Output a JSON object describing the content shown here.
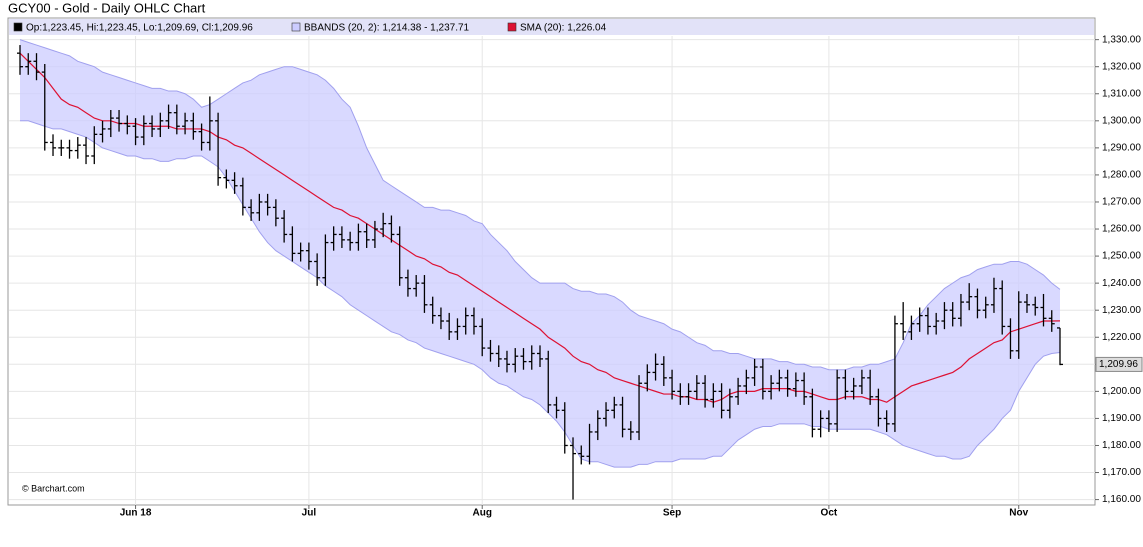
{
  "chart_data": {
    "type": "ohlc",
    "title": "GCY00 - Gold - Daily OHLC Chart",
    "source": "© Barchart.com",
    "categories": [
      null,
      null,
      null,
      null,
      null,
      null,
      null,
      null,
      null,
      null,
      null,
      null,
      null,
      null,
      "Jun 18",
      null,
      null,
      null,
      null,
      null,
      null,
      null,
      null,
      null,
      null,
      null,
      null,
      null,
      null,
      null,
      null,
      null,
      null,
      null,
      null,
      "Jul",
      null,
      null,
      null,
      null,
      null,
      null,
      null,
      null,
      null,
      null,
      null,
      null,
      null,
      null,
      null,
      null,
      null,
      null,
      null,
      null,
      "Aug",
      null,
      null,
      null,
      null,
      null,
      null,
      null,
      null,
      null,
      null,
      null,
      null,
      null,
      null,
      null,
      null,
      null,
      null,
      null,
      null,
      null,
      null,
      "Sep",
      null,
      null,
      null,
      null,
      null,
      null,
      null,
      null,
      null,
      null,
      null,
      null,
      null,
      null,
      null,
      null,
      null,
      null,
      "Oct",
      null,
      null,
      null,
      null,
      null,
      null,
      null,
      null,
      null,
      null,
      null,
      null,
      null,
      null,
      null,
      null,
      null,
      null,
      null,
      null,
      null,
      null,
      "Nov",
      null,
      null,
      null,
      null,
      null
    ],
    "ylim": [
      1158,
      1338
    ],
    "yticks": [
      {
        "value": 1160,
        "label": "1,160.00"
      },
      {
        "value": 1170,
        "label": "1,170.00"
      },
      {
        "value": 1180,
        "label": "1,180.00"
      },
      {
        "value": 1190,
        "label": "1,190.00"
      },
      {
        "value": 1200,
        "label": "1,200.00"
      },
      {
        "value": 1210,
        "label": "1,210.00"
      },
      {
        "value": 1220,
        "label": "1,220.00"
      },
      {
        "value": 1230,
        "label": "1,230.00"
      },
      {
        "value": 1240,
        "label": "1,240.00"
      },
      {
        "value": 1250,
        "label": "1,250.00"
      },
      {
        "value": 1260,
        "label": "1,260.00"
      },
      {
        "value": 1270,
        "label": "1,270.00"
      },
      {
        "value": 1280,
        "label": "1,280.00"
      },
      {
        "value": 1290,
        "label": "1,290.00"
      },
      {
        "value": 1300,
        "label": "1,300.00"
      },
      {
        "value": 1310,
        "label": "1,310.00"
      },
      {
        "value": 1320,
        "label": "1,320.00"
      },
      {
        "value": 1330,
        "label": "1,330.00"
      }
    ],
    "grid": true,
    "last_value_label": "1,209.96",
    "series": [
      {
        "name": "Op:1,223.45, Hi:1,223.45, Lo:1,209.69, Cl:1,209.96",
        "color": "#000000",
        "open": [
          1325,
          1320,
          1322,
          1318,
          1292,
          1290,
          1290,
          1289,
          1291,
          1287,
          1295,
          1297,
          1301,
          1299,
          1298,
          1294,
          1299,
          1297,
          1300,
          1303,
          1298,
          1300,
          1296,
          1292,
          1300,
          1279,
          1278,
          1276,
          1268,
          1266,
          1270,
          1268,
          1264,
          1258,
          1251,
          1252,
          1248,
          1242,
          1255,
          1258,
          1256,
          1255,
          1259,
          1256,
          1260,
          1262,
          1258,
          1242,
          1238,
          1240,
          1232,
          1228,
          1226,
          1222,
          1224,
          1228,
          1224,
          1216,
          1214,
          1212,
          1210,
          1213,
          1211,
          1214,
          1212,
          1195,
          1193,
          1180,
          1177,
          1176,
          1185,
          1190,
          1193,
          1195,
          1186,
          1185,
          1203,
          1207,
          1210,
          1205,
          1200,
          1198,
          1200,
          1203,
          1197,
          1200,
          1193,
          1198,
          1202,
          1205,
          1209,
          1200,
          1203,
          1205,
          1201,
          1204,
          1198,
          1186,
          1190,
          1188,
          1205,
          1200,
          1202,
          1205,
          1198,
          1190,
          1188,
          1225,
          1222,
          1225,
          1228,
          1224,
          1226,
          1230,
          1227,
          1233,
          1235,
          1230,
          1232,
          1238,
          1224,
          1215,
          1233,
          1232,
          1231,
          1227,
          1223.45
        ],
        "high": [
          1328,
          1325,
          1325,
          1321,
          1295,
          1293,
          1293,
          1294,
          1294,
          1298,
          1300,
          1304,
          1304,
          1302,
          1301,
          1302,
          1302,
          1303,
          1306,
          1306,
          1303,
          1303,
          1299,
          1309,
          1303,
          1282,
          1281,
          1279,
          1271,
          1273,
          1273,
          1271,
          1267,
          1261,
          1255,
          1255,
          1251,
          1258,
          1261,
          1261,
          1259,
          1262,
          1262,
          1263,
          1266,
          1265,
          1261,
          1245,
          1243,
          1243,
          1235,
          1231,
          1229,
          1227,
          1231,
          1231,
          1227,
          1219,
          1217,
          1215,
          1216,
          1216,
          1217,
          1217,
          1215,
          1198,
          1196,
          1183,
          1180,
          1188,
          1193,
          1196,
          1198,
          1198,
          1189,
          1206,
          1210,
          1214,
          1213,
          1208,
          1203,
          1203,
          1206,
          1206,
          1203,
          1203,
          1201,
          1205,
          1208,
          1212,
          1212,
          1206,
          1208,
          1208,
          1207,
          1207,
          1201,
          1193,
          1193,
          1208,
          1208,
          1205,
          1208,
          1208,
          1201,
          1193,
          1228,
          1233,
          1228,
          1231,
          1231,
          1229,
          1233,
          1233,
          1236,
          1240,
          1238,
          1235,
          1242,
          1241,
          1227,
          1237,
          1236,
          1235,
          1236,
          1230,
          1223.45
        ],
        "low": [
          1317,
          1317,
          1315,
          1289,
          1287,
          1287,
          1286,
          1286,
          1284,
          1284,
          1292,
          1294,
          1296,
          1295,
          1291,
          1291,
          1294,
          1294,
          1297,
          1295,
          1295,
          1293,
          1289,
          1289,
          1276,
          1275,
          1273,
          1265,
          1263,
          1263,
          1265,
          1261,
          1255,
          1248,
          1248,
          1245,
          1239,
          1239,
          1252,
          1253,
          1252,
          1252,
          1253,
          1253,
          1257,
          1255,
          1239,
          1235,
          1235,
          1229,
          1225,
          1223,
          1219,
          1219,
          1221,
          1221,
          1213,
          1211,
          1209,
          1207,
          1207,
          1208,
          1208,
          1209,
          1192,
          1190,
          1177,
          1160,
          1173,
          1173,
          1182,
          1187,
          1190,
          1183,
          1182,
          1182,
          1200,
          1204,
          1202,
          1197,
          1195,
          1195,
          1197,
          1194,
          1194,
          1190,
          1190,
          1195,
          1199,
          1202,
          1197,
          1197,
          1200,
          1198,
          1198,
          1195,
          1183,
          1183,
          1185,
          1185,
          1197,
          1197,
          1199,
          1195,
          1187,
          1185,
          1185,
          1219,
          1219,
          1222,
          1221,
          1221,
          1223,
          1224,
          1224,
          1230,
          1227,
          1227,
          1229,
          1221,
          1212,
          1212,
          1229,
          1228,
          1224,
          1222,
          1209.69
        ],
        "close": [
          1320,
          1322,
          1318,
          1292,
          1290,
          1290,
          1289,
          1291,
          1287,
          1295,
          1297,
          1301,
          1299,
          1298,
          1294,
          1299,
          1297,
          1300,
          1303,
          1298,
          1300,
          1296,
          1292,
          1300,
          1279,
          1278,
          1276,
          1268,
          1266,
          1270,
          1268,
          1264,
          1258,
          1251,
          1252,
          1248,
          1242,
          1255,
          1258,
          1256,
          1255,
          1259,
          1256,
          1260,
          1262,
          1258,
          1242,
          1238,
          1240,
          1232,
          1228,
          1226,
          1222,
          1224,
          1228,
          1224,
          1216,
          1214,
          1212,
          1210,
          1213,
          1211,
          1214,
          1212,
          1195,
          1193,
          1180,
          1177,
          1176,
          1185,
          1190,
          1193,
          1195,
          1186,
          1185,
          1203,
          1207,
          1210,
          1205,
          1200,
          1198,
          1200,
          1203,
          1197,
          1200,
          1193,
          1198,
          1202,
          1205,
          1209,
          1200,
          1203,
          1205,
          1201,
          1204,
          1198,
          1186,
          1190,
          1188,
          1205,
          1200,
          1202,
          1205,
          1198,
          1190,
          1188,
          1225,
          1222,
          1225,
          1228,
          1224,
          1226,
          1230,
          1227,
          1233,
          1235,
          1230,
          1232,
          1238,
          1224,
          1215,
          1233,
          1232,
          1231,
          1227,
          1225,
          1209.96
        ]
      },
      {
        "name": "BBANDS (20, 2): 1,214.38 - 1,237.71",
        "color": "#a0a0ee",
        "fill": "#ccccff",
        "upper": [
          1330,
          1329,
          1328,
          1327,
          1326,
          1325,
          1324,
          1322,
          1321,
          1320,
          1318,
          1317,
          1316,
          1315,
          1314,
          1313,
          1312,
          1312,
          1311,
          1311,
          1310,
          1308,
          1305,
          1306,
          1308,
          1310,
          1312,
          1314,
          1315,
          1317,
          1318,
          1319,
          1320,
          1320,
          1319,
          1318,
          1317,
          1315,
          1312,
          1308,
          1305,
          1298,
          1290,
          1284,
          1278,
          1276,
          1274,
          1272,
          1270,
          1268,
          1268,
          1267,
          1267,
          1266,
          1265,
          1263,
          1262,
          1258,
          1255,
          1252,
          1248,
          1245,
          1242,
          1240,
          1240,
          1240,
          1240,
          1238,
          1237,
          1237,
          1236,
          1236,
          1235,
          1233,
          1230,
          1228,
          1227,
          1226,
          1225,
          1223,
          1222,
          1220,
          1218,
          1217,
          1215,
          1215,
          1214,
          1214,
          1213,
          1212,
          1212,
          1212,
          1211,
          1211,
          1210,
          1210,
          1209,
          1209,
          1208,
          1208,
          1208,
          1209,
          1209,
          1210,
          1210,
          1211,
          1212,
          1218,
          1225,
          1228,
          1232,
          1235,
          1238,
          1240,
          1242,
          1243,
          1245,
          1246,
          1247,
          1247,
          1248,
          1248,
          1247,
          1245,
          1243,
          1240,
          1237.71
        ],
        "lower": [
          1300,
          1300,
          1299,
          1298,
          1297,
          1297,
          1296,
          1295,
          1294,
          1292,
          1290,
          1289,
          1288,
          1287,
          1287,
          1286,
          1286,
          1285,
          1285,
          1286,
          1286,
          1287,
          1287,
          1285,
          1283,
          1279,
          1274,
          1269,
          1264,
          1259,
          1255,
          1252,
          1250,
          1248,
          1246,
          1244,
          1242,
          1239,
          1237,
          1235,
          1232,
          1230,
          1228,
          1226,
          1224,
          1222,
          1221,
          1219,
          1218,
          1216,
          1215,
          1214,
          1213,
          1212,
          1211,
          1210,
          1208,
          1205,
          1203,
          1202,
          1200,
          1198,
          1197,
          1195,
          1192,
          1189,
          1185,
          1180,
          1175,
          1174,
          1174,
          1173,
          1172,
          1172,
          1172,
          1173,
          1173,
          1174,
          1174,
          1174,
          1175,
          1175,
          1175,
          1175,
          1176,
          1176,
          1179,
          1182,
          1184,
          1186,
          1187,
          1187,
          1188,
          1188,
          1188,
          1188,
          1187,
          1187,
          1186,
          1186,
          1186,
          1186,
          1186,
          1186,
          1185,
          1184,
          1182,
          1180,
          1179,
          1178,
          1177,
          1176,
          1176,
          1175,
          1175,
          1176,
          1180,
          1183,
          1186,
          1190,
          1193,
          1200,
          1205,
          1210,
          1213,
          1214,
          1214.38
        ]
      },
      {
        "name": "SMA (20): 1,226.04",
        "color": "#dd1133",
        "values": [
          1325,
          1322,
          1319,
          1316,
          1312,
          1308,
          1306,
          1305,
          1303,
          1301,
          1300,
          1300,
          1299,
          1299,
          1299,
          1298,
          1298,
          1298,
          1298,
          1297,
          1297,
          1297,
          1297,
          1296,
          1294,
          1293,
          1291,
          1290,
          1288,
          1286,
          1284,
          1282,
          1280,
          1278,
          1276,
          1274,
          1272,
          1270,
          1268,
          1267,
          1265,
          1264,
          1262,
          1260,
          1258,
          1256,
          1254,
          1252,
          1250,
          1249,
          1247,
          1246,
          1244,
          1243,
          1241,
          1239,
          1237,
          1235,
          1233,
          1231,
          1229,
          1227,
          1225,
          1223,
          1220,
          1218,
          1216,
          1213,
          1211,
          1210,
          1208,
          1207,
          1205,
          1204,
          1203,
          1202,
          1201,
          1200,
          1199,
          1199,
          1198,
          1198,
          1197,
          1197,
          1196,
          1197,
          1199,
          1200,
          1200,
          1200,
          1201,
          1201,
          1201,
          1201,
          1200,
          1200,
          1199,
          1198,
          1197,
          1197,
          1198,
          1198,
          1198,
          1197,
          1197,
          1196,
          1198,
          1200,
          1202,
          1203,
          1204,
          1205,
          1206,
          1207,
          1209,
          1212,
          1214,
          1216,
          1218,
          1219,
          1222,
          1223,
          1224,
          1225,
          1226,
          1226,
          1226.04
        ]
      }
    ]
  }
}
